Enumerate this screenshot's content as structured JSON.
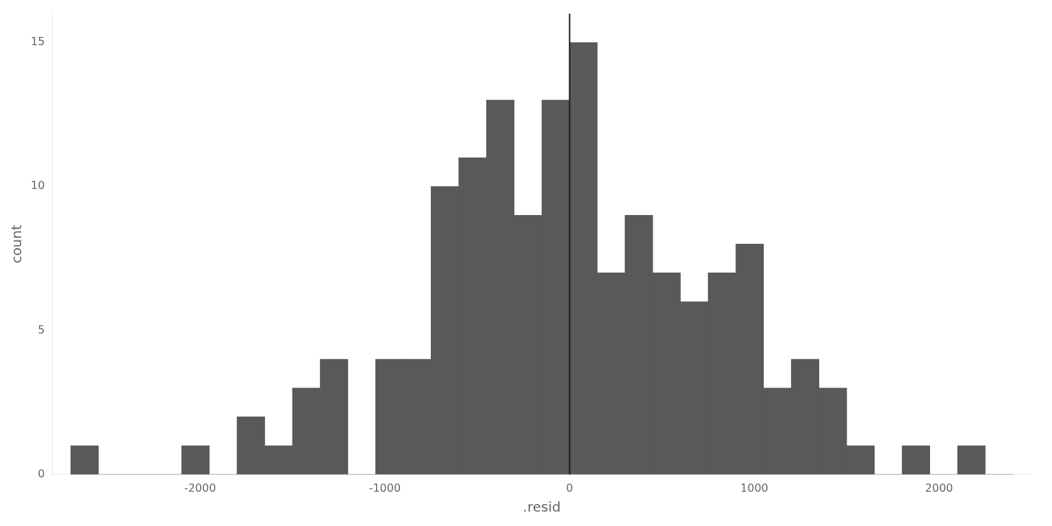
{
  "chart_data": {
    "type": "histogram",
    "xlabel": ".resid",
    "ylabel": "count",
    "bins": [
      -2700,
      -2550,
      -2400,
      -2250,
      -2100,
      -1950,
      -1800,
      -1650,
      -1500,
      -1350,
      -1200,
      -1050,
      -900,
      -750,
      -600,
      -450,
      -300,
      -150,
      0,
      150,
      300,
      450,
      600,
      750,
      900,
      1050,
      1200,
      1350,
      1500,
      1650,
      1800,
      1950,
      2100,
      2250,
      2400
    ],
    "counts": [
      1,
      0,
      0,
      0,
      1,
      0,
      2,
      1,
      3,
      4,
      0,
      4,
      4,
      10,
      11,
      13,
      9,
      13,
      15,
      7,
      9,
      7,
      6,
      7,
      8,
      3,
      4,
      3,
      1,
      0,
      1,
      0,
      1,
      0
    ],
    "color": "#595959",
    "vline_x": 0,
    "vline_color": "#1a1a1a",
    "xlim": [
      -2800,
      2500
    ],
    "xticks": [
      -2000,
      -1000,
      0,
      1000,
      2000
    ],
    "ylim": [
      0,
      16
    ],
    "yticks": [
      0,
      5,
      10,
      15
    ],
    "grid": false
  }
}
